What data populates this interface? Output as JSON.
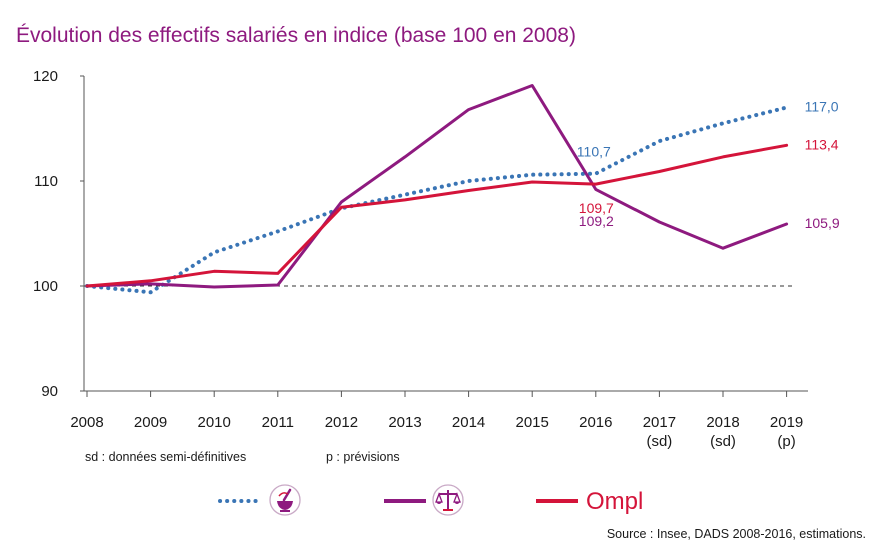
{
  "chart_data": {
    "type": "line",
    "title": "Évolution des effectifs salariés en indice (base 100 en 2008)",
    "x": [
      "2008",
      "2009",
      "2010",
      "2011",
      "2012",
      "2013",
      "2014",
      "2015",
      "2016",
      "2017",
      "2018",
      "2019"
    ],
    "x_sublabels": [
      "",
      "",
      "",
      "",
      "",
      "",
      "",
      "",
      "",
      "(sd)",
      "(sd)",
      "(p)"
    ],
    "ylim": [
      90,
      120
    ],
    "yticks": [
      90,
      100,
      110,
      120
    ],
    "reference_line": 100,
    "grid": false,
    "series": [
      {
        "style": "dotted",
        "color": "#3a75b5",
        "values": [
          100.0,
          99.4,
          103.2,
          105.2,
          107.4,
          108.7,
          110.0,
          110.6,
          110.7,
          113.8,
          115.5,
          117.0
        ]
      },
      {
        "style": "solid",
        "color": "#8e1a7f",
        "values": [
          100.0,
          100.2,
          99.9,
          100.1,
          108.0,
          112.3,
          116.8,
          119.1,
          109.2,
          106.1,
          103.6,
          105.9
        ]
      },
      {
        "style": "solid",
        "color": "#d4143a",
        "values": [
          100.0,
          100.5,
          101.4,
          101.2,
          107.5,
          108.2,
          109.1,
          109.9,
          109.7,
          110.9,
          112.3,
          113.4
        ]
      }
    ],
    "annotations": [
      {
        "text": "117,0",
        "color": "#3a75b5",
        "x": "2019",
        "y": 117.0
      },
      {
        "text": "113,4",
        "color": "#d4143a",
        "x": "2019",
        "y": 113.4
      },
      {
        "text": "105,9",
        "color": "#8e1a7f",
        "x": "2019",
        "y": 105.9
      },
      {
        "text": "110,7",
        "color": "#3a75b5",
        "x": "2016",
        "y": 110.7
      },
      {
        "text": "109,7",
        "color": "#d4143a",
        "x": "2016",
        "y": 109.7
      },
      {
        "text": "109,2",
        "color": "#8e1a7f",
        "x": "2016",
        "y": 109.2
      }
    ]
  },
  "notes": {
    "sd": "sd : données semi-définitives",
    "p": "p : prévisions"
  },
  "legend": {
    "brand_text": "Ompl",
    "icons": [
      "mortar-pestle-icon",
      "scales-of-justice-icon"
    ]
  },
  "source": "Source : Insee, DADS 2008-2016, estimations."
}
